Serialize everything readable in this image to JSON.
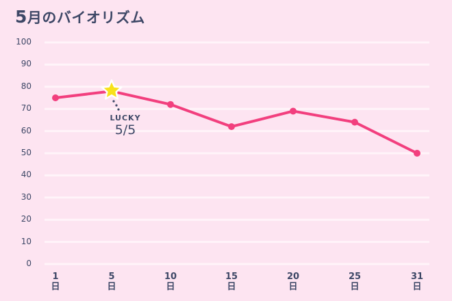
{
  "title": {
    "month": "5",
    "text": "月のバイオリズム"
  },
  "colors": {
    "background": "#fde4f1",
    "line": "#f23f7e",
    "grid": "#fff4f9",
    "text": "#3d4766",
    "star": "#f8e11b"
  },
  "annotation": {
    "label": "LUCKY",
    "date": "5/5",
    "icon": "star-icon"
  },
  "chart_data": {
    "type": "line",
    "title": "5月のバイオリズム",
    "xlabel": "",
    "ylabel": "",
    "categories": [
      "1日",
      "5日",
      "10日",
      "15日",
      "20日",
      "25日",
      "31日"
    ],
    "x_ticks": [
      {
        "num": "1",
        "unit": "日"
      },
      {
        "num": "5",
        "unit": "日"
      },
      {
        "num": "10",
        "unit": "日"
      },
      {
        "num": "15",
        "unit": "日"
      },
      {
        "num": "20",
        "unit": "日"
      },
      {
        "num": "25",
        "unit": "日"
      },
      {
        "num": "31",
        "unit": "日"
      }
    ],
    "series": [
      {
        "name": "バイオリズム",
        "values": [
          75,
          78,
          72,
          62,
          69,
          64,
          50
        ]
      }
    ],
    "y_ticks": [
      "100",
      "90",
      "80",
      "70",
      "60",
      "50",
      "40",
      "30",
      "20",
      "10",
      "0"
    ],
    "ylim": [
      0,
      100
    ],
    "grid": true,
    "legend": "none",
    "annotations": [
      {
        "x": "5日",
        "text": "LUCKY 5/5",
        "marker": "star"
      }
    ]
  }
}
